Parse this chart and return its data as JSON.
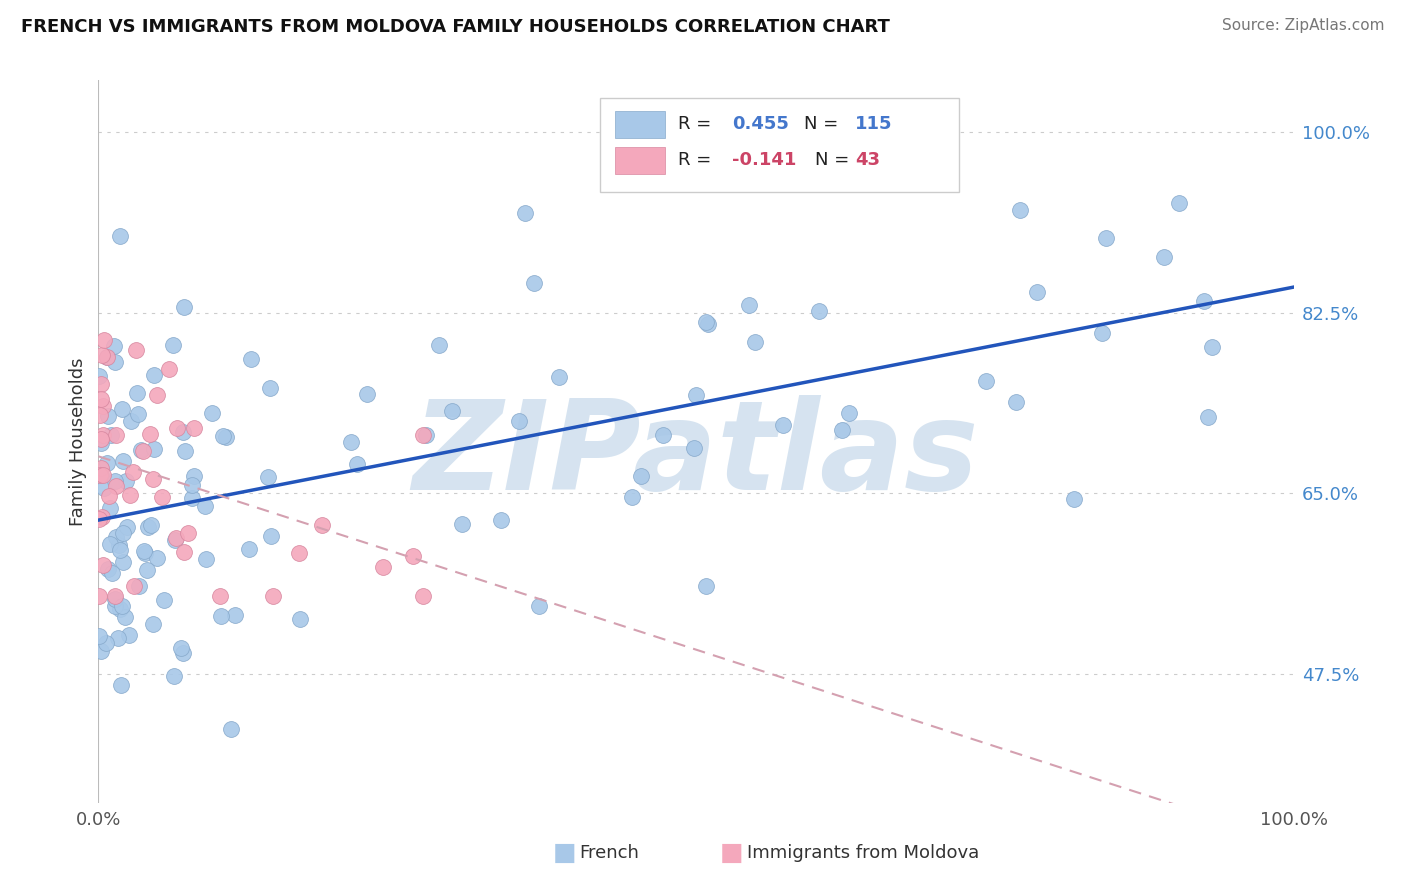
{
  "title": "FRENCH VS IMMIGRANTS FROM MOLDOVA FAMILY HOUSEHOLDS CORRELATION CHART",
  "source": "Source: ZipAtlas.com",
  "ylabel": "Family Households",
  "legend_labels": [
    "French",
    "Immigrants from Moldova"
  ],
  "blue_R": 0.455,
  "blue_N": 115,
  "pink_R": -0.141,
  "pink_N": 43,
  "blue_color": "#a8c8e8",
  "pink_color": "#f4a8bc",
  "blue_edge_color": "#88aacc",
  "pink_edge_color": "#d888a0",
  "blue_line_color": "#2255bb",
  "pink_line_color": "#d4a0b0",
  "xlim": [
    0.0,
    100.0
  ],
  "ylim": [
    35.0,
    105.0
  ],
  "yticks": [
    47.5,
    65.0,
    82.5,
    100.0
  ],
  "ytick_color": "#4488cc",
  "watermark": "ZIPatlas",
  "watermark_color": "#c5d8ea",
  "bg_color": "#ffffff",
  "title_fontsize": 13,
  "source_fontsize": 11,
  "tick_fontsize": 13,
  "legend_r_color_blue": "#4477cc",
  "legend_r_color_pink": "#cc4466"
}
